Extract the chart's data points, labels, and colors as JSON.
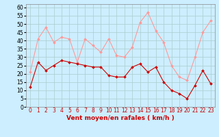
{
  "hours": [
    0,
    1,
    2,
    3,
    4,
    5,
    6,
    7,
    8,
    9,
    10,
    11,
    12,
    13,
    14,
    15,
    16,
    17,
    18,
    19,
    20,
    21,
    22,
    23
  ],
  "vent_moyen": [
    12,
    27,
    22,
    25,
    28,
    27,
    26,
    25,
    24,
    24,
    19,
    18,
    18,
    24,
    26,
    21,
    24,
    15,
    10,
    8,
    5,
    13,
    22,
    14
  ],
  "rafales": [
    21,
    41,
    48,
    39,
    42,
    41,
    27,
    41,
    37,
    33,
    41,
    31,
    30,
    36,
    51,
    57,
    46,
    39,
    25,
    18,
    16,
    30,
    45,
    52
  ],
  "bg_color": "#cceeff",
  "grid_color": "#aacccc",
  "line_moyen_color": "#cc0000",
  "line_rafales_color": "#ff9999",
  "xlabel": "Vent moyen/en rafales ( km/h )",
  "xlabel_color": "#cc0000",
  "ylim": [
    0,
    62
  ],
  "yticks": [
    0,
    5,
    10,
    15,
    20,
    25,
    30,
    35,
    40,
    45,
    50,
    55,
    60
  ],
  "tick_fontsize": 5.5,
  "xlabel_fontsize": 6.5
}
